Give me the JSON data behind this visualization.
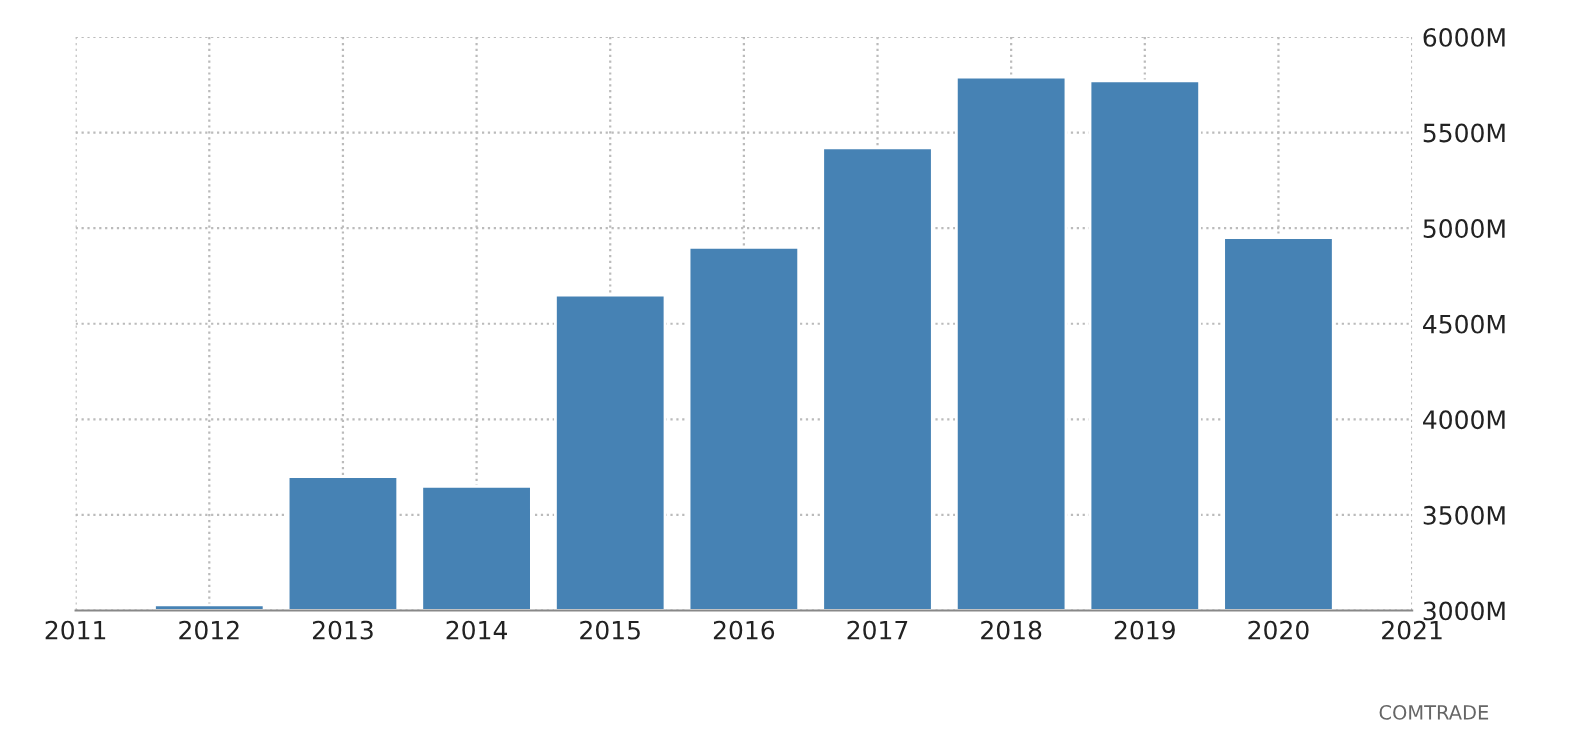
{
  "chart_data": {
    "type": "bar",
    "x": [
      2012,
      2013,
      2014,
      2015,
      2016,
      2017,
      2018,
      2019,
      2020
    ],
    "values": [
      3030,
      3700,
      3650,
      4650,
      4900,
      5420,
      5790,
      5770,
      4950
    ],
    "color": "#4682b4",
    "xlim": [
      2011,
      2021
    ],
    "xticks": [
      2011,
      2012,
      2013,
      2014,
      2015,
      2016,
      2017,
      2018,
      2019,
      2020,
      2021
    ],
    "ylim": [
      3000,
      6000
    ],
    "yticks": [
      {
        "value": 3000,
        "label": "3000M"
      },
      {
        "value": 3500,
        "label": "3500M"
      },
      {
        "value": 4000,
        "label": "4000M"
      },
      {
        "value": 4500,
        "label": "4500M"
      },
      {
        "value": 5000,
        "label": "5000M"
      },
      {
        "value": 5500,
        "label": "5500M"
      },
      {
        "value": 6000,
        "label": "6000M"
      }
    ],
    "grid": true,
    "annotations": [
      "COMTRADE"
    ]
  }
}
